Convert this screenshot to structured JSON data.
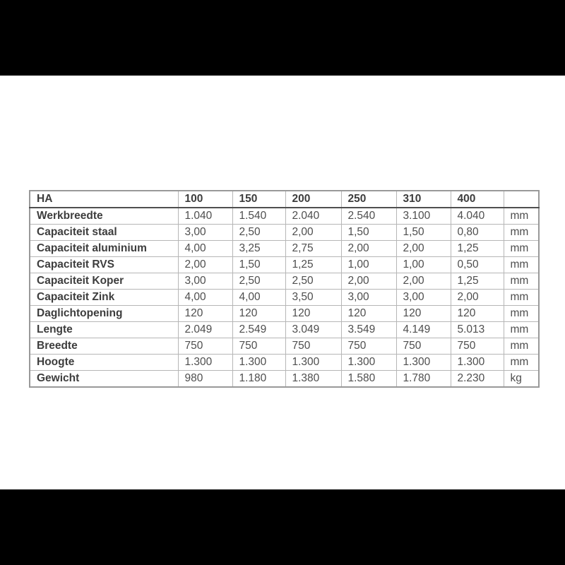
{
  "page": {
    "background": "#ffffff",
    "letterbox_color": "#000000",
    "outer_border_color": "#999999",
    "grid_line_color": "#b6b6b6",
    "header_rule_color": "#4f4f4f",
    "label_text_color": "#3d3d3d",
    "value_text_color": "#4e4e4e"
  },
  "table": {
    "header": [
      "HA",
      "100",
      "150",
      "200",
      "250",
      "310",
      "400",
      ""
    ],
    "rows": [
      {
        "label": "Werkbreedte",
        "values": [
          "1.040",
          "1.540",
          "2.040",
          "2.540",
          "3.100",
          "4.040"
        ],
        "unit": "mm"
      },
      {
        "label": "Capaciteit staal",
        "values": [
          "3,00",
          "2,50",
          "2,00",
          "1,50",
          "1,50",
          "0,80"
        ],
        "unit": "mm"
      },
      {
        "label": "Capaciteit aluminium",
        "values": [
          "4,00",
          "3,25",
          "2,75",
          "2,00",
          "2,00",
          "1,25"
        ],
        "unit": "mm"
      },
      {
        "label": "Capaciteit RVS",
        "values": [
          "2,00",
          "1,50",
          "1,25",
          "1,00",
          "1,00",
          "0,50"
        ],
        "unit": "mm"
      },
      {
        "label": "Capaciteit Koper",
        "values": [
          "3,00",
          "2,50",
          "2,50",
          "2,00",
          "2,00",
          "1,25"
        ],
        "unit": "mm"
      },
      {
        "label": "Capaciteit Zink",
        "values": [
          "4,00",
          "4,00",
          "3,50",
          "3,00",
          "3,00",
          "2,00"
        ],
        "unit": "mm"
      },
      {
        "label": "Daglichtopening",
        "values": [
          "120",
          "120",
          "120",
          "120",
          "120",
          "120"
        ],
        "unit": "mm"
      },
      {
        "label": "Lengte",
        "values": [
          "2.049",
          "2.549",
          "3.049",
          "3.549",
          "4.149",
          "5.013"
        ],
        "unit": "mm"
      },
      {
        "label": "Breedte",
        "values": [
          "750",
          "750",
          "750",
          "750",
          "750",
          "750"
        ],
        "unit": "mm"
      },
      {
        "label": "Hoogte",
        "values": [
          "1.300",
          "1.300",
          "1.300",
          "1.300",
          "1.300",
          "1.300"
        ],
        "unit": "mm"
      },
      {
        "label": "Gewicht",
        "values": [
          "980",
          "1.180",
          "1.380",
          "1.580",
          "1.780",
          "2.230"
        ],
        "unit": "kg"
      }
    ]
  }
}
